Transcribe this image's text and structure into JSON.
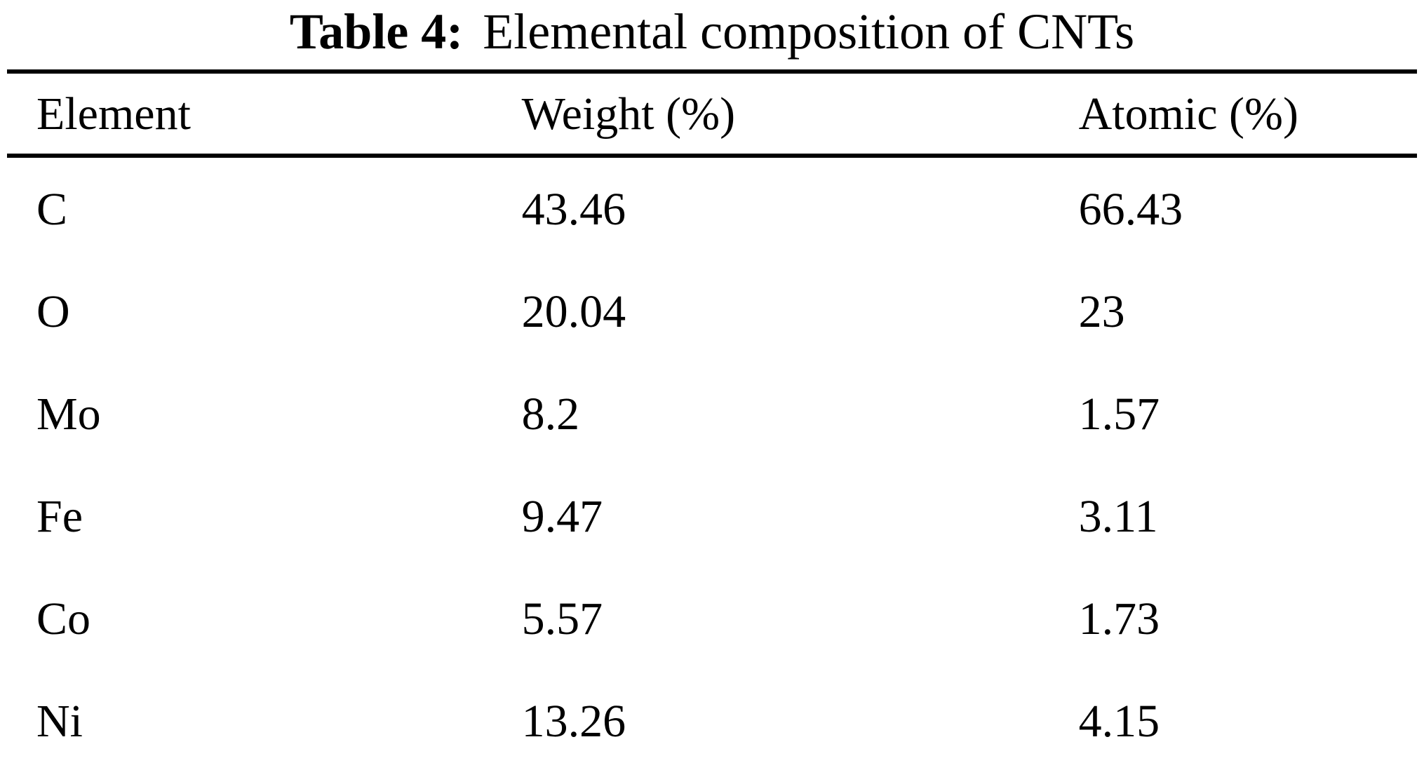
{
  "caption": {
    "label": "Table 4:",
    "text": "Elemental composition of CNTs"
  },
  "table": {
    "headers": [
      "Element",
      "Weight (%)",
      "Atomic (%)"
    ],
    "rows": [
      {
        "element": "C",
        "weight": "43.46",
        "atomic": "66.43"
      },
      {
        "element": "O",
        "weight": "20.04",
        "atomic": "23"
      },
      {
        "element": "Mo",
        "weight": "8.2",
        "atomic": "1.57"
      },
      {
        "element": "Fe",
        "weight": "9.47",
        "atomic": "3.11"
      },
      {
        "element": "Co",
        "weight": "5.57",
        "atomic": "1.73"
      },
      {
        "element": "Ni",
        "weight": "13.26",
        "atomic": "4.15"
      }
    ]
  }
}
